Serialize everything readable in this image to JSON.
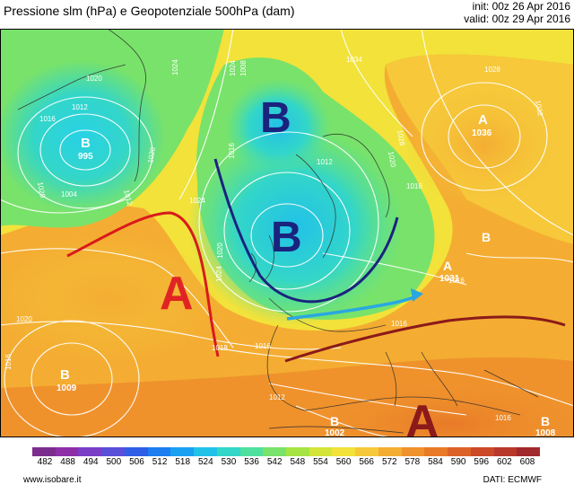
{
  "header": {
    "title": "Pressione slm (hPa) e Geopotenziale 500hPa (dam)",
    "init": "init: 00z 26 Apr 2016",
    "valid": "valid: 00z 29 Apr 2016"
  },
  "map": {
    "pressure_centers": [
      {
        "label": "B",
        "value": "995"
      },
      {
        "label": "B",
        "value": ""
      },
      {
        "label": "B",
        "value": ""
      },
      {
        "label": "A",
        "value": "1036"
      },
      {
        "label": "A",
        "value": ""
      },
      {
        "label": "A",
        "value": "1031"
      },
      {
        "label": "B",
        "value": ""
      },
      {
        "label": "B",
        "value": "1009"
      },
      {
        "label": "B",
        "value": "1002"
      },
      {
        "label": "A",
        "value": ""
      },
      {
        "label": "B",
        "value": "1008"
      }
    ],
    "isobar_labels": [
      "1034",
      "1028",
      "1032",
      "1024",
      "1020",
      "1012",
      "1016",
      "1020",
      "1024",
      "1008",
      "1004",
      "1012",
      "1020",
      "1024",
      "1012",
      "1016",
      "1028",
      "1020",
      "1016",
      "1024",
      "1020",
      "1020",
      "1016",
      "1016",
      "1012",
      "1016",
      "1016",
      "1016",
      "1018"
    ],
    "colors": {
      "ridge_red": "#d81b1b",
      "trough_blue": "#1a237e",
      "jet_cyan": "#29a8e0",
      "ridge_darkred": "#8b1a1a"
    }
  },
  "legend": {
    "ticks": [
      "482",
      "488",
      "494",
      "500",
      "506",
      "512",
      "518",
      "524",
      "530",
      "536",
      "542",
      "548",
      "554",
      "560",
      "566",
      "572",
      "578",
      "584",
      "590",
      "596",
      "602",
      "608"
    ],
    "colors": [
      "#7b2d8e",
      "#8f2fa8",
      "#7a3fc6",
      "#5a4fd8",
      "#2f5fe6",
      "#1c7ef0",
      "#1aa0f0",
      "#22c2e8",
      "#33d6c8",
      "#4fe0a0",
      "#79e26a",
      "#a6e443",
      "#d4e53a",
      "#f2e23a",
      "#f6c83a",
      "#f4ad32",
      "#ef922c",
      "#e87a28",
      "#dd6228",
      "#cc4a2a",
      "#b8382c",
      "#a2292e"
    ]
  },
  "footer": {
    "site": "www.isobare.it",
    "source": "DATI: ECMWF"
  }
}
